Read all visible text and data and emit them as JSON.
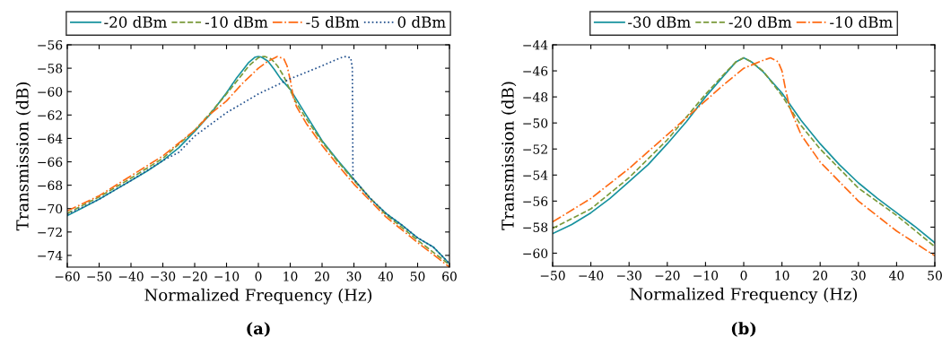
{
  "chart_data": [
    {
      "type": "line",
      "xlabel": "Normalized Frequency (Hz)",
      "ylabel": "Transmission (dB)",
      "annotations": [
        "(a)"
      ],
      "xlim": [
        -60,
        60
      ],
      "ylim": [
        -75,
        -56
      ],
      "xticks": [
        -60,
        -50,
        -40,
        -30,
        -20,
        -10,
        0,
        10,
        20,
        30,
        40,
        50,
        60
      ],
      "yticks": [
        -74,
        -72,
        -70,
        -68,
        -66,
        -64,
        -62,
        -60,
        -58,
        -56
      ],
      "grid": false,
      "legend": "top",
      "series": [
        {
          "name": "-20 dBm",
          "color": "#17929e",
          "line_style": "solid",
          "x": [
            -60,
            -55,
            -50,
            -45,
            -40,
            -35,
            -30,
            -25,
            -20,
            -15,
            -10,
            -7,
            -5,
            -3,
            -1,
            0,
            1,
            3,
            5,
            7,
            10,
            15,
            20,
            25,
            30,
            35,
            40,
            45,
            50,
            55,
            60
          ],
          "values": [
            -70.6,
            -69.9,
            -69.2,
            -68.4,
            -67.6,
            -66.8,
            -65.9,
            -64.8,
            -63.4,
            -61.9,
            -60.1,
            -58.9,
            -58.2,
            -57.5,
            -57.05,
            -57.0,
            -57.05,
            -57.4,
            -58.1,
            -58.9,
            -59.8,
            -62.0,
            -64.2,
            -65.9,
            -67.5,
            -69.1,
            -70.4,
            -71.4,
            -72.5,
            -73.3,
            -74.7
          ]
        },
        {
          "name": "-10 dBm",
          "color": "#7a9a3a",
          "line_style": "dashed",
          "x": [
            -60,
            -50,
            -40,
            -30,
            -20,
            -15,
            -10,
            -5,
            -3,
            0,
            1,
            2,
            4,
            6,
            8,
            10,
            12,
            15,
            20,
            25,
            30,
            40,
            50,
            60
          ],
          "values": [
            -70.4,
            -69.0,
            -67.4,
            -65.7,
            -63.3,
            -61.8,
            -60.2,
            -58.5,
            -57.8,
            -57.1,
            -57.0,
            -57.0,
            -57.2,
            -57.8,
            -58.7,
            -59.9,
            -61.0,
            -62.3,
            -64.3,
            -66.0,
            -67.6,
            -70.5,
            -72.7,
            -74.8
          ]
        },
        {
          "name": "-5 dBm",
          "color": "#ff6a13",
          "line_style": "dashdot",
          "x": [
            -60,
            -50,
            -40,
            -30,
            -20,
            -15,
            -10,
            -5,
            0,
            3,
            6,
            8,
            9,
            10,
            11,
            12,
            15,
            20,
            25,
            30,
            40,
            50,
            60
          ],
          "values": [
            -70.2,
            -68.9,
            -67.2,
            -65.5,
            -63.3,
            -61.9,
            -60.8,
            -59.3,
            -58.0,
            -57.4,
            -57.0,
            -57.2,
            -57.8,
            -59.0,
            -60.5,
            -61.3,
            -62.7,
            -64.6,
            -66.3,
            -67.9,
            -70.7,
            -72.9,
            -75.0
          ]
        },
        {
          "name": "0 dBm",
          "color": "#1f4e8c",
          "line_style": "dotted",
          "x": [
            -60,
            -50,
            -40,
            -30,
            -25,
            -20,
            -10,
            0,
            10,
            20,
            25,
            27,
            29,
            29.5,
            29.7,
            30,
            35,
            40,
            45,
            50,
            55,
            60
          ],
          "values": [
            -70.5,
            -69.2,
            -67.6,
            -65.9,
            -65.2,
            -63.8,
            -61.8,
            -60.2,
            -58.9,
            -57.8,
            -57.2,
            -57.0,
            -57.1,
            -58.0,
            -67.4,
            -67.5,
            -69.1,
            -70.4,
            -71.4,
            -72.5,
            -73.3,
            -74.7
          ]
        }
      ]
    },
    {
      "type": "line",
      "xlabel": "Normalized Frequency (Hz)",
      "ylabel": "Transmission (dB)",
      "annotations": [
        "(b)"
      ],
      "xlim": [
        -50,
        50
      ],
      "ylim": [
        -61,
        -44
      ],
      "xticks": [
        -50,
        -40,
        -30,
        -20,
        -10,
        0,
        10,
        20,
        30,
        40,
        50
      ],
      "yticks": [
        -60,
        -58,
        -56,
        -54,
        -52,
        -50,
        -48,
        -46,
        -44
      ],
      "grid": false,
      "legend": "top",
      "series": [
        {
          "name": "-30 dBm",
          "color": "#17929e",
          "line_style": "solid",
          "x": [
            -50,
            -45,
            -40,
            -35,
            -30,
            -25,
            -20,
            -15,
            -10,
            -5,
            -2,
            0,
            2,
            5,
            10,
            15,
            20,
            25,
            30,
            35,
            40,
            45,
            50
          ],
          "values": [
            -58.5,
            -57.8,
            -56.9,
            -55.8,
            -54.5,
            -53.2,
            -51.6,
            -49.9,
            -48.0,
            -46.3,
            -45.3,
            -45.0,
            -45.3,
            -46.05,
            -47.7,
            -49.8,
            -51.6,
            -53.2,
            -54.6,
            -55.8,
            -56.9,
            -58.0,
            -59.2
          ]
        },
        {
          "name": "-20 dBm",
          "color": "#7a9a3a",
          "line_style": "dashed",
          "x": [
            -50,
            -40,
            -30,
            -20,
            -10,
            -5,
            -2,
            0,
            2,
            5,
            10,
            15,
            20,
            30,
            40,
            50
          ],
          "values": [
            -58.1,
            -56.6,
            -54.2,
            -51.3,
            -47.8,
            -46.2,
            -45.3,
            -45.0,
            -45.3,
            -46.0,
            -47.9,
            -50.2,
            -52.0,
            -55.0,
            -57.1,
            -59.5
          ]
        },
        {
          "name": "-10 dBm",
          "color": "#ff6a13",
          "line_style": "dashdot",
          "x": [
            -50,
            -40,
            -30,
            -20,
            -10,
            -5,
            0,
            5,
            7,
            9,
            10,
            11,
            12,
            15,
            20,
            30,
            40,
            50
          ],
          "values": [
            -57.6,
            -55.8,
            -53.5,
            -50.9,
            -48.3,
            -47.0,
            -45.8,
            -45.2,
            -45.0,
            -45.3,
            -46.0,
            -47.5,
            -48.8,
            -50.9,
            -53.0,
            -56.0,
            -58.3,
            -60.2
          ]
        }
      ]
    }
  ]
}
